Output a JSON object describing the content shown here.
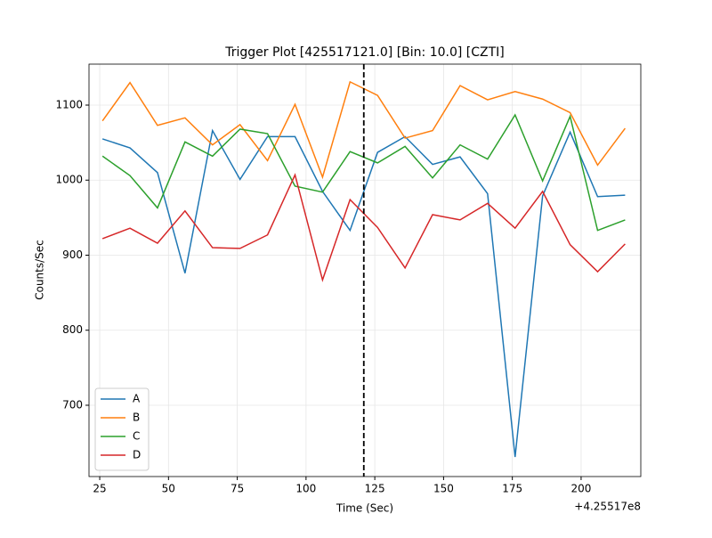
{
  "chart_data": {
    "type": "line",
    "title": "Trigger Plot [425517121.0] [Bin: 10.0] [CZTI]",
    "xlabel": "Time (Sec)",
    "ylabel": "Counts/Sec",
    "x_offset_label": "+4.25517e8",
    "x": [
      26,
      36,
      46,
      56,
      66,
      76,
      86,
      96,
      106,
      116,
      126,
      136,
      146,
      156,
      166,
      176,
      186,
      196,
      206,
      216
    ],
    "series": [
      {
        "name": "A",
        "color": "#1f77b4",
        "values": [
          1055,
          1043,
          1010,
          876,
          1066,
          1001,
          1058,
          1058,
          985,
          933,
          1037,
          1058,
          1021,
          1031,
          982,
          631,
          979,
          1064,
          978,
          980
        ]
      },
      {
        "name": "B",
        "color": "#ff7f0e",
        "values": [
          1079,
          1130,
          1073,
          1083,
          1047,
          1074,
          1026,
          1101,
          1004,
          1131,
          1113,
          1056,
          1066,
          1126,
          1107,
          1118,
          1108,
          1090,
          1020,
          1069
        ]
      },
      {
        "name": "C",
        "color": "#2ca02c",
        "values": [
          1032,
          1006,
          963,
          1051,
          1032,
          1068,
          1062,
          992,
          984,
          1038,
          1023,
          1045,
          1003,
          1047,
          1028,
          1087,
          999,
          1085,
          933,
          947
        ]
      },
      {
        "name": "D",
        "color": "#d62728",
        "values": [
          922,
          936,
          916,
          959,
          910,
          909,
          927,
          1007,
          867,
          974,
          937,
          883,
          954,
          947,
          969,
          936,
          985,
          914,
          878,
          915
        ]
      }
    ],
    "trigger_x": 121,
    "xlim": [
      21.1,
      221.7
    ],
    "xticks": [
      25,
      50,
      75,
      100,
      125,
      150,
      175,
      200
    ],
    "ylim": [
      605,
      1154.6
    ],
    "yticks": [
      700,
      800,
      900,
      1000,
      1100
    ],
    "grid": true,
    "legend": "lower left"
  }
}
